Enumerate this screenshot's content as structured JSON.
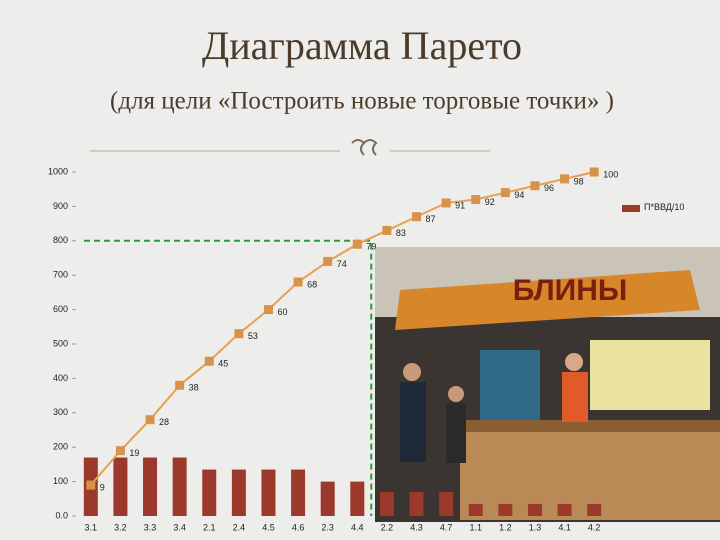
{
  "title": "Диаграмма Парето",
  "subtitle": "(для цели «Построить новые торговые точки» )",
  "photo_sign": "БЛИНЫ",
  "chart_data": {
    "type": "pareto",
    "categories": [
      "3.1",
      "3.2",
      "3.3",
      "3.4",
      "2.1",
      "2.4",
      "4.5",
      "4.6",
      "2.3",
      "4.4",
      "2.2",
      "4.3",
      "4.7",
      "1.1",
      "1.2",
      "1.3",
      "4.1",
      "4.2"
    ],
    "series": [
      {
        "name": "П*ВВД/10",
        "color": "#9b3a2a",
        "type": "bar",
        "values": [
          170,
          170,
          170,
          170,
          135,
          135,
          135,
          135,
          100,
          100,
          70,
          70,
          70,
          35,
          35,
          35,
          35,
          35
        ]
      },
      {
        "color": "#e8a050",
        "type": "line",
        "axis": "y2",
        "values": [
          9,
          19,
          28,
          38,
          45,
          53,
          60,
          68,
          74,
          79,
          83,
          87,
          91,
          92,
          94,
          96,
          98,
          100
        ]
      }
    ],
    "ylim": [
      0,
      1000
    ],
    "yticks": [
      {
        "value": 0,
        "label": "0.0"
      },
      100,
      200,
      300,
      400,
      500,
      600,
      700,
      800,
      900,
      1000
    ],
    "y2lim": [
      0,
      100
    ],
    "legend": "right",
    "reference_line": {
      "y": 800,
      "color": "#2e9a3e"
    }
  }
}
